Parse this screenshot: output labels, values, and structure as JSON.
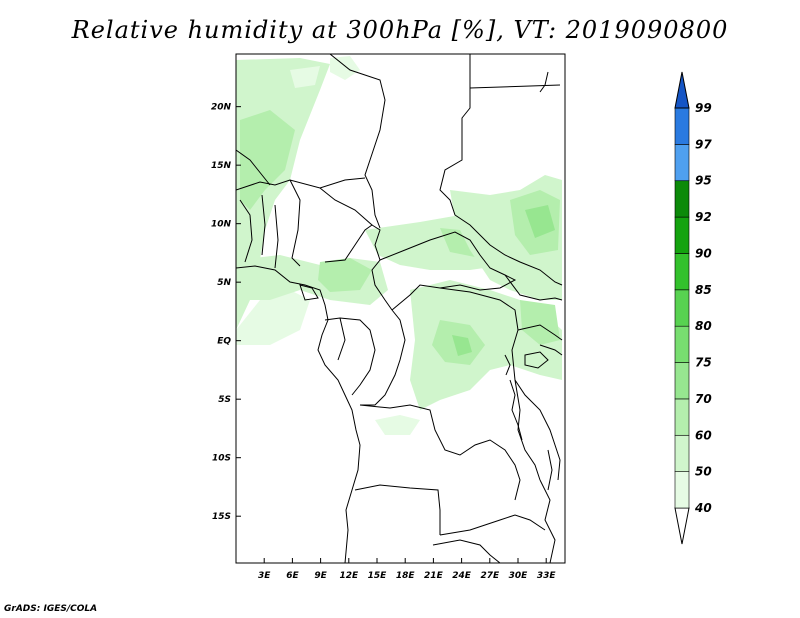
{
  "title": "Relative humidity at 300hPa [%], VT: 2019090800",
  "credit": "GrADS: IGES/COLA",
  "map": {
    "lon_range": [
      0,
      35
    ],
    "lat_range": [
      -19,
      24.5
    ],
    "lon_ticks": [
      "3E",
      "6E",
      "9E",
      "12E",
      "15E",
      "18E",
      "21E",
      "24E",
      "27E",
      "30E",
      "33E"
    ],
    "lat_ticks": [
      "20N",
      "15N",
      "10N",
      "5N",
      "EQ",
      "5S",
      "10S",
      "15S"
    ]
  },
  "legend": {
    "levels": [
      "40",
      "50",
      "60",
      "70",
      "75",
      "80",
      "85",
      "90",
      "92",
      "95",
      "97",
      "99"
    ],
    "colors": [
      "#ffffff",
      "#e6fbe4",
      "#d0f5cc",
      "#b4eead",
      "#97e690",
      "#78de70",
      "#58d251",
      "#33c12c",
      "#14a30f",
      "#0c8a09",
      "#4fa0f0",
      "#2a7ae0",
      "#1555c5"
    ]
  }
}
